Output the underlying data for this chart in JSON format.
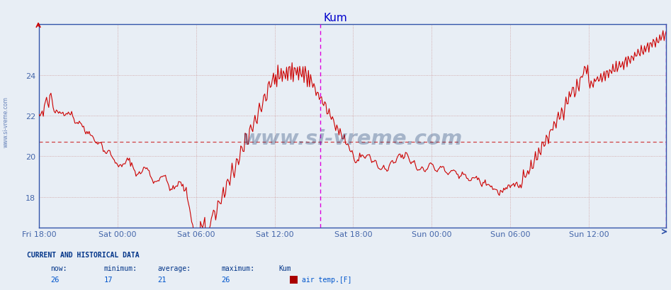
{
  "title": "Kum",
  "title_color": "#0000cc",
  "bg_color": "#e8eef5",
  "plot_bg_color": "#e8eef5",
  "line_color": "#cc0000",
  "avg_line_color": "#cc2222",
  "avg_line_value": 20.7,
  "vline_color": "#dd00dd",
  "ylim": [
    16.5,
    26.5
  ],
  "yticks": [
    18,
    20,
    22,
    24
  ],
  "tick_color": "#4466aa",
  "watermark": "www.si-vreme.com",
  "watermark_color": "#1a3a6e",
  "sidebar_text": "www.si-vreme.com",
  "xtick_labels": [
    "Fri 18:00",
    "Sat 00:00",
    "Sat 06:00",
    "Sat 12:00",
    "Sat 18:00",
    "Sun 00:00",
    "Sun 06:00",
    "Sun 12:00"
  ],
  "n_points": 576,
  "footer_label1": "CURRENT AND HISTORICAL DATA",
  "footer_label2": "now:",
  "footer_label3": "minimum:",
  "footer_label4": "average:",
  "footer_label5": "maximum:",
  "footer_label6": "Kum",
  "footer_label7": "air temp.[F]",
  "footer_val_now": "26",
  "footer_val_min": "17",
  "footer_val_avg": "21",
  "footer_val_max": "26",
  "footer_color": "#0055cc",
  "footer_header_color": "#003388",
  "spine_color": "#3355aa",
  "grid_color": "#cc9999",
  "grid_color2": "#ccaaaa"
}
